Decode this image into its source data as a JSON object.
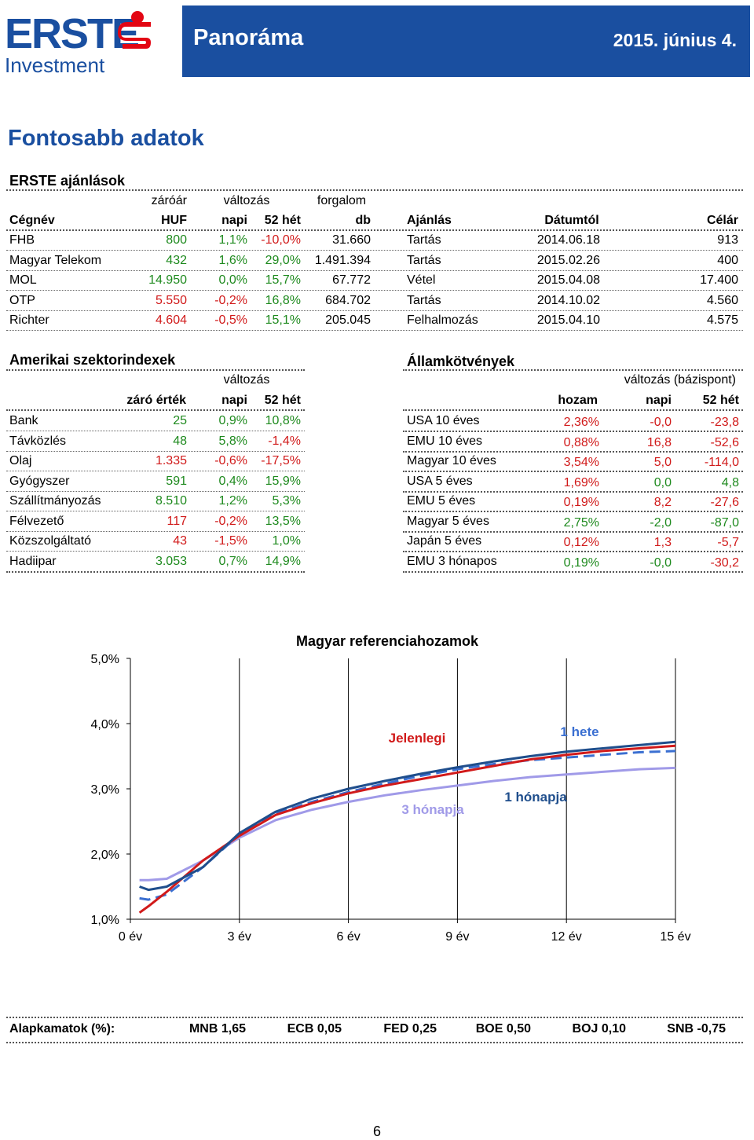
{
  "header": {
    "logo_top": "ERSTE",
    "logo_bottom": "Investment",
    "title": "Panoráma",
    "date": "2015. június 4."
  },
  "section_title": "Fontosabb adatok",
  "recommendations": {
    "title": "ERSTE ajánlások",
    "group_headers": {
      "close": "záróár",
      "change": "változás",
      "volume": "forgalom"
    },
    "headers": [
      "Cégnév",
      "HUF",
      "napi",
      "52 hét",
      "db",
      "Ajánlás",
      "Dátumtól",
      "Célár"
    ],
    "rows": [
      {
        "name": "FHB",
        "close": "800",
        "daily": "1,1%",
        "year": "-10,0%",
        "volume": "31.660",
        "rec": "Tartás",
        "date": "2014.06.18",
        "target": "913"
      },
      {
        "name": "Magyar Telekom",
        "close": "432",
        "daily": "1,6%",
        "year": "29,0%",
        "volume": "1.491.394",
        "rec": "Tartás",
        "date": "2015.02.26",
        "target": "400"
      },
      {
        "name": "MOL",
        "close": "14.950",
        "daily": "0,0%",
        "year": "15,7%",
        "volume": "67.772",
        "rec": "Vétel",
        "date": "2015.04.08",
        "target": "17.400"
      },
      {
        "name": "OTP",
        "close": "5.550",
        "daily": "-0,2%",
        "year": "16,8%",
        "volume": "684.702",
        "rec": "Tartás",
        "date": "2014.10.02",
        "target": "4.560"
      },
      {
        "name": "Richter",
        "close": "4.604",
        "daily": "-0,5%",
        "year": "15,1%",
        "volume": "205.045",
        "rec": "Felhalmozás",
        "date": "2015.04.10",
        "target": "4.575"
      }
    ],
    "colors": {
      "close": [
        "green",
        "green",
        "green",
        "red",
        "red"
      ],
      "daily": [
        "green",
        "green",
        "green",
        "red",
        "red"
      ],
      "year": [
        "red",
        "green",
        "green",
        "green",
        "green"
      ]
    }
  },
  "sectors": {
    "title": "Amerikai szektorindexek",
    "group_header": "változás",
    "headers": [
      "záró érték",
      "napi",
      "52 hét"
    ],
    "rows": [
      {
        "name": "Bank",
        "close": "25",
        "daily": "0,9%",
        "year": "10,8%",
        "c": [
          "green",
          "green",
          "green"
        ]
      },
      {
        "name": "Távközlés",
        "close": "48",
        "daily": "5,8%",
        "year": "-1,4%",
        "c": [
          "green",
          "green",
          "red"
        ]
      },
      {
        "name": "Olaj",
        "close": "1.335",
        "daily": "-0,6%",
        "year": "-17,5%",
        "c": [
          "red",
          "red",
          "red"
        ]
      },
      {
        "name": "Gyógyszer",
        "close": "591",
        "daily": "0,4%",
        "year": "15,9%",
        "c": [
          "green",
          "green",
          "green"
        ]
      },
      {
        "name": "Szállítmányozás",
        "close": "8.510",
        "daily": "1,2%",
        "year": "5,3%",
        "c": [
          "green",
          "green",
          "green"
        ]
      },
      {
        "name": "Félvezető",
        "close": "117",
        "daily": "-0,2%",
        "year": "13,5%",
        "c": [
          "red",
          "red",
          "green"
        ]
      },
      {
        "name": "Közszolgáltató",
        "close": "43",
        "daily": "-1,5%",
        "year": "1,0%",
        "c": [
          "red",
          "red",
          "green"
        ]
      },
      {
        "name": "Hadiipar",
        "close": "3.053",
        "daily": "0,7%",
        "year": "14,9%",
        "c": [
          "green",
          "green",
          "green"
        ]
      }
    ]
  },
  "bonds": {
    "title": "Államkötvények",
    "group_header": "változás (bázispont)",
    "headers": [
      "hozam",
      "napi",
      "52 hét"
    ],
    "rows": [
      {
        "name": "USA 10 éves",
        "yield": "2,36%",
        "daily": "-0,0",
        "year": "-23,8",
        "c": [
          "red",
          "red",
          "red"
        ]
      },
      {
        "name": "EMU 10 éves",
        "yield": "0,88%",
        "daily": "16,8",
        "year": "-52,6",
        "c": [
          "red",
          "red",
          "red"
        ]
      },
      {
        "name": "Magyar 10 éves",
        "yield": "3,54%",
        "daily": "5,0",
        "year": "-114,0",
        "c": [
          "red",
          "red",
          "red"
        ]
      },
      {
        "name": "USA 5 éves",
        "yield": "1,69%",
        "daily": "0,0",
        "year": "4,8",
        "c": [
          "red",
          "green",
          "green"
        ]
      },
      {
        "name": "EMU 5 éves",
        "yield": "0,19%",
        "daily": "8,2",
        "year": "-27,6",
        "c": [
          "red",
          "red",
          "red"
        ]
      },
      {
        "name": "Magyar 5 éves",
        "yield": "2,75%",
        "daily": "-2,0",
        "year": "-87,0",
        "c": [
          "green",
          "green",
          "green"
        ]
      },
      {
        "name": "Japán 5 éves",
        "yield": "0,12%",
        "daily": "1,3",
        "year": "-5,7",
        "c": [
          "red",
          "red",
          "red"
        ]
      },
      {
        "name": "EMU 3 hónapos",
        "yield": "0,19%",
        "daily": "-0,0",
        "year": "-30,2",
        "c": [
          "green",
          "green",
          "red"
        ]
      }
    ]
  },
  "chart_data": {
    "type": "line",
    "title": "Magyar referenciahozamok",
    "xlabel": "",
    "ylabel": "",
    "xlim": [
      0,
      15
    ],
    "ylim": [
      1.0,
      5.0
    ],
    "x_ticks": [
      "0 év",
      "3 év",
      "6 év",
      "9 év",
      "12 év",
      "15 év"
    ],
    "y_ticks": [
      "1,0%",
      "2,0%",
      "3,0%",
      "4,0%",
      "5,0%"
    ],
    "grid": "vertical",
    "series": [
      {
        "name": "Jelenlegi",
        "color": "#d11a1a",
        "style": "solid",
        "points": [
          [
            0.25,
            1.1
          ],
          [
            0.5,
            1.2
          ],
          [
            1,
            1.42
          ],
          [
            2,
            1.9
          ],
          [
            3,
            2.28
          ],
          [
            4,
            2.6
          ],
          [
            5,
            2.78
          ],
          [
            6,
            2.93
          ],
          [
            7,
            3.05
          ],
          [
            8,
            3.15
          ],
          [
            9,
            3.25
          ],
          [
            10,
            3.35
          ],
          [
            11,
            3.45
          ],
          [
            12,
            3.52
          ],
          [
            13,
            3.58
          ],
          [
            14,
            3.62
          ],
          [
            15,
            3.66
          ]
        ]
      },
      {
        "name": "1 hete",
        "color": "#1f4e8c",
        "style": "solid",
        "points": [
          [
            0.25,
            1.5
          ],
          [
            0.5,
            1.45
          ],
          [
            1,
            1.5
          ],
          [
            2,
            1.8
          ],
          [
            3,
            2.32
          ],
          [
            4,
            2.65
          ],
          [
            5,
            2.85
          ],
          [
            6,
            3.0
          ],
          [
            7,
            3.12
          ],
          [
            8,
            3.23
          ],
          [
            9,
            3.33
          ],
          [
            10,
            3.42
          ],
          [
            11,
            3.5
          ],
          [
            12,
            3.57
          ],
          [
            13,
            3.62
          ],
          [
            14,
            3.67
          ],
          [
            15,
            3.72
          ]
        ]
      },
      {
        "name": "1 hónapja",
        "color": "#3a6fd1",
        "style": "dashed",
        "points": [
          [
            0.25,
            1.32
          ],
          [
            0.5,
            1.3
          ],
          [
            1,
            1.38
          ],
          [
            2,
            1.8
          ],
          [
            3,
            2.3
          ],
          [
            4,
            2.62
          ],
          [
            5,
            2.8
          ],
          [
            6,
            2.95
          ],
          [
            7,
            3.08
          ],
          [
            8,
            3.2
          ],
          [
            9,
            3.3
          ],
          [
            10,
            3.38
          ],
          [
            11,
            3.44
          ],
          [
            12,
            3.48
          ],
          [
            13,
            3.52
          ],
          [
            14,
            3.56
          ],
          [
            15,
            3.58
          ]
        ]
      },
      {
        "name": "3 hónapja",
        "color": "#a09ae8",
        "style": "solid",
        "points": [
          [
            0.25,
            1.6
          ],
          [
            0.5,
            1.6
          ],
          [
            1,
            1.62
          ],
          [
            2,
            1.9
          ],
          [
            3,
            2.25
          ],
          [
            4,
            2.52
          ],
          [
            5,
            2.68
          ],
          [
            6,
            2.8
          ],
          [
            7,
            2.9
          ],
          [
            8,
            2.98
          ],
          [
            9,
            3.05
          ],
          [
            10,
            3.12
          ],
          [
            11,
            3.18
          ],
          [
            12,
            3.22
          ],
          [
            13,
            3.26
          ],
          [
            14,
            3.3
          ],
          [
            15,
            3.32
          ]
        ]
      }
    ]
  },
  "rates": {
    "label": "Alapkamatok (%):",
    "items": [
      "MNB 1,65",
      "ECB 0,05",
      "FED 0,25",
      "BOE 0,50",
      "BOJ 0,10",
      "SNB -0,75"
    ]
  },
  "page_number": "6"
}
